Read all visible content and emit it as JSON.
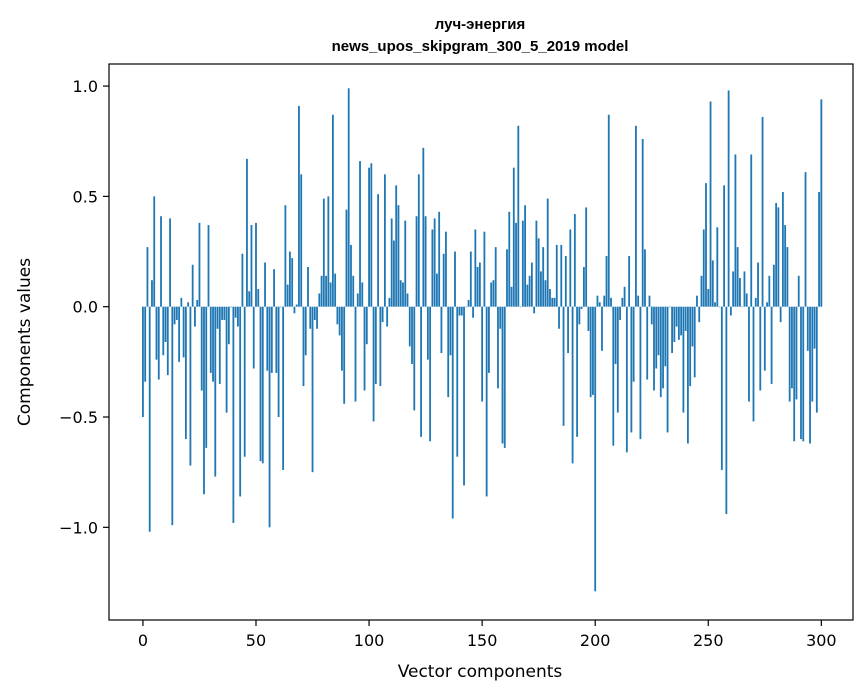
{
  "chart_data": {
    "type": "bar",
    "title": "луч-энергия",
    "subtitle": "news_upos_skipgram_300_5_2019 model",
    "xlabel": "Vector components",
    "ylabel": "Components values",
    "xlim": [
      -15,
      314
    ],
    "ylim": [
      -1.42,
      1.1
    ],
    "xticks": [
      0,
      50,
      100,
      150,
      200,
      250,
      300
    ],
    "xtick_labels": [
      "0",
      "50",
      "100",
      "150",
      "200",
      "250",
      "300"
    ],
    "yticks": [
      -1.0,
      -0.5,
      0.0,
      0.5,
      1.0
    ],
    "ytick_labels": [
      "−1.0",
      "−0.5",
      "0.0",
      "0.5",
      "1.0"
    ],
    "grid": false,
    "bar_color": "#1f77b4",
    "x_start": 0,
    "values": [
      -0.5,
      -0.34,
      0.27,
      -1.02,
      0.12,
      0.5,
      -0.24,
      -0.33,
      0.41,
      -0.22,
      -0.16,
      -0.31,
      0.4,
      -0.99,
      -0.08,
      -0.06,
      -0.25,
      0.04,
      -0.23,
      -0.6,
      0.02,
      -0.72,
      0.19,
      -0.09,
      0.03,
      0.38,
      -0.38,
      -0.85,
      -0.64,
      0.37,
      -0.3,
      -0.34,
      -0.77,
      -0.1,
      -0.35,
      -0.06,
      -0.06,
      -0.48,
      -0.17,
      0.0,
      -0.98,
      -0.05,
      -0.09,
      -0.86,
      0.24,
      -0.68,
      0.67,
      0.07,
      0.37,
      -0.28,
      0.38,
      0.08,
      -0.7,
      -0.71,
      0.2,
      -0.29,
      -1.0,
      -0.3,
      0.17,
      -0.3,
      -0.5,
      0.0,
      -0.74,
      0.46,
      0.1,
      0.25,
      0.22,
      -0.03,
      0.01,
      0.91,
      0.6,
      -0.36,
      -0.22,
      0.18,
      -0.1,
      -0.75,
      -0.06,
      -0.1,
      0.06,
      0.14,
      0.49,
      0.14,
      0.5,
      0.11,
      0.87,
      0.15,
      -0.08,
      -0.13,
      -0.29,
      -0.44,
      0.44,
      0.99,
      0.28,
      0.14,
      -0.43,
      0.06,
      0.66,
      0.11,
      -0.38,
      -0.17,
      0.63,
      0.65,
      -0.52,
      -0.35,
      0.51,
      -0.36,
      -0.07,
      0.6,
      -0.09,
      0.04,
      0.4,
      0.3,
      0.55,
      0.46,
      0.12,
      0.11,
      0.39,
      0.06,
      -0.18,
      -0.26,
      -0.47,
      0.41,
      0.6,
      -0.59,
      0.72,
      0.41,
      -0.24,
      -0.61,
      0.35,
      0.4,
      0.15,
      0.43,
      -0.21,
      0.24,
      0.34,
      -0.41,
      -0.22,
      -0.96,
      0.25,
      -0.68,
      -0.04,
      -0.04,
      -0.81,
      0.0,
      0.03,
      0.25,
      -0.05,
      0.35,
      0.18,
      0.2,
      -0.43,
      0.34,
      -0.86,
      -0.3,
      0.11,
      0.12,
      0.27,
      -0.37,
      -0.1,
      -0.62,
      -0.64,
      0.26,
      0.43,
      0.09,
      0.63,
      0.38,
      0.82,
      0.0,
      0.39,
      0.46,
      0.1,
      0.14,
      0.2,
      -0.03,
      0.39,
      0.31,
      0.16,
      0.27,
      0.12,
      0.49,
      0.08,
      0.04,
      0.04,
      0.28,
      -0.1,
      0.28,
      -0.54,
      0.23,
      -0.21,
      0.35,
      -0.71,
      0.42,
      -0.59,
      -0.08,
      -0.01,
      0.18,
      0.45,
      -0.11,
      -0.41,
      -0.4,
      -1.29,
      0.05,
      0.02,
      -0.2,
      0.05,
      0.23,
      0.87,
      0.04,
      -0.63,
      -0.26,
      -0.48,
      -0.06,
      0.04,
      0.09,
      -0.66,
      0.23,
      -0.57,
      -0.34,
      0.82,
      0.05,
      -0.6,
      0.76,
      0.26,
      -0.33,
      0.05,
      -0.08,
      -0.38,
      -0.28,
      -0.22,
      -0.41,
      -0.37,
      -0.27,
      -0.57,
      0.0,
      -0.21,
      -0.16,
      -0.09,
      -0.15,
      -0.13,
      -0.48,
      -0.11,
      -0.62,
      -0.36,
      -0.18,
      -0.32,
      0.05,
      -0.07,
      0.14,
      0.35,
      0.56,
      0.08,
      0.93,
      0.21,
      0.02,
      0.36,
      0.0,
      -0.74,
      0.55,
      -0.94,
      0.98,
      -0.04,
      0.16,
      0.69,
      0.27,
      0.13,
      0.0,
      0.16,
      0.06,
      -0.43,
      0.69,
      -0.52,
      0.04,
      0.2,
      -0.38,
      0.86,
      -0.29,
      0.02,
      0.14,
      -0.35,
      0.19,
      0.47,
      0.45,
      -0.07,
      0.52,
      0.37,
      0.27,
      -0.43,
      -0.37,
      -0.61,
      -0.42,
      0.14,
      -0.6,
      -0.61,
      0.61,
      -0.2,
      -0.62,
      -0.43,
      -0.19,
      -0.48,
      0.52,
      0.94
    ]
  }
}
